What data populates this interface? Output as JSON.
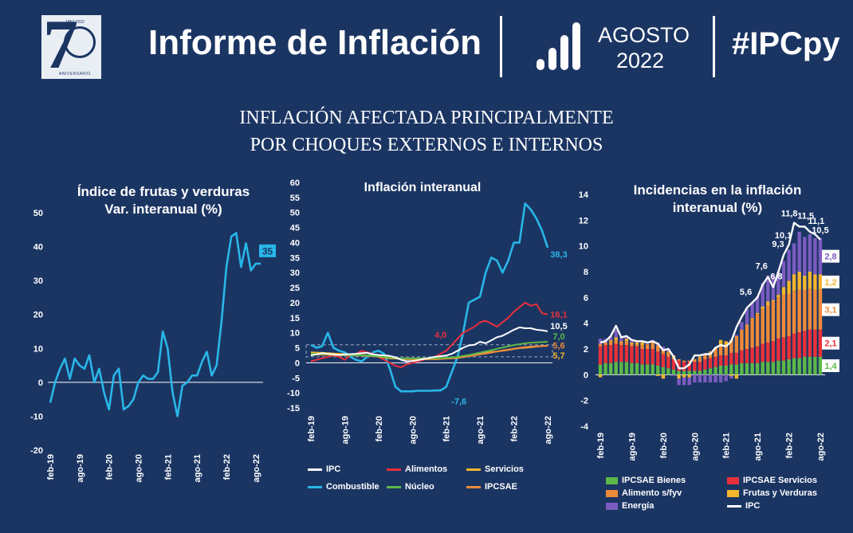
{
  "header": {
    "title": "Informe de Inflación",
    "month": "AGOSTO",
    "year": "2022",
    "hashtag": "#IPCpy",
    "logo": {
      "big": "7",
      "years": "1952-2022",
      "subtitle": "ANIVERSARIO"
    }
  },
  "headline": {
    "line1": "INFLACIÓN AFECTADA PRINCIPALMENTE",
    "line2": "POR CHOQUES EXTERNOS E INTERNOS"
  },
  "colors": {
    "bg": "#1b3563",
    "cyan": "#29b6e8",
    "red": "#e8303a",
    "yellow": "#f5b52e",
    "green": "#5cb848",
    "orange": "#ee8a3a",
    "purple": "#7b5cc0",
    "white": "#ffffff"
  },
  "chart_data": [
    {
      "type": "line",
      "title": "Índice de frutas y verduras",
      "subtitle": "Var. interanual (%)",
      "ylim": [
        -20,
        50
      ],
      "yticks": [
        "-20",
        "-10",
        "0",
        "10",
        "20",
        "30",
        "40",
        "50"
      ],
      "xticks": [
        "feb-19",
        "ago-19",
        "feb-20",
        "ago-20",
        "feb-21",
        "ago-21",
        "feb-22",
        "ago-22"
      ],
      "series": [
        {
          "name": "Frutas y verduras",
          "color": "#29b6e8",
          "values": [
            -6,
            0,
            4,
            7,
            1,
            7,
            5,
            4,
            8,
            0,
            4,
            -3,
            -8,
            2,
            4,
            -8,
            -7,
            -5,
            0,
            2,
            1,
            1,
            3,
            15,
            10,
            -3,
            -10,
            -1,
            0,
            2,
            2,
            6,
            9,
            2,
            5,
            18,
            34,
            43,
            44,
            34,
            41,
            33,
            35,
            35
          ]
        }
      ],
      "last_label": "35"
    },
    {
      "type": "line",
      "title": "Inflación interanual",
      "ylim": [
        -15,
        60
      ],
      "yticks": [
        "-15",
        "-10",
        "-5",
        "0",
        "5",
        "10",
        "15",
        "20",
        "25",
        "30",
        "35",
        "40",
        "45",
        "50",
        "55",
        "60"
      ],
      "xticks": [
        "feb-19",
        "ago-19",
        "feb-20",
        "ago-20",
        "feb-21",
        "ago-21",
        "feb-22",
        "ago-22"
      ],
      "band": [
        2,
        6
      ],
      "series": [
        {
          "name": "IPC",
          "color": "#ffffff",
          "values": [
            2.5,
            2.8,
            3.2,
            3.0,
            2.8,
            2.6,
            2.8,
            2.9,
            3.0,
            3.2,
            3.3,
            2.8,
            2.6,
            2.5,
            2.3,
            1.8,
            1.0,
            0.5,
            0.6,
            0.9,
            1.3,
            1.6,
            2.0,
            2.2,
            2.4,
            3.0,
            4.0,
            5.0,
            5.8,
            6.0,
            7.0,
            6.5,
            7.5,
            8.5,
            9.0,
            10.0,
            11.0,
            11.8,
            11.5,
            11.5,
            11.0,
            10.8,
            10.5
          ]
        },
        {
          "name": "Alimentos",
          "color": "#e8303a",
          "values": [
            0.5,
            1.0,
            1.5,
            2.0,
            2.5,
            2.0,
            1.0,
            2.5,
            3.0,
            4.0,
            3.5,
            3.0,
            2.0,
            1.0,
            0.0,
            -1.0,
            -1.5,
            -0.5,
            0.0,
            0.5,
            1.0,
            1.5,
            2.0,
            3.0,
            4.0,
            6.0,
            8.0,
            10.0,
            11.0,
            12.0,
            13.5,
            14.0,
            13.0,
            12.0,
            13.5,
            15.0,
            17.0,
            18.5,
            20.0,
            19.0,
            19.5,
            16.5,
            16.1
          ]
        },
        {
          "name": "Servicios",
          "color": "#f5b52e",
          "values": [
            3.5,
            3.4,
            3.3,
            3.2,
            3.1,
            3.0,
            2.9,
            2.8,
            2.7,
            2.6,
            2.5,
            2.3,
            2.0,
            1.8,
            1.5,
            1.4,
            1.3,
            1.2,
            1.2,
            1.2,
            1.2,
            1.2,
            1.2,
            1.3,
            1.4,
            1.5,
            1.6,
            2.0,
            2.4,
            2.8,
            3.0,
            3.3,
            3.6,
            3.8,
            4.0,
            4.3,
            4.6,
            4.9,
            5.0,
            5.2,
            5.4,
            5.6,
            5.7
          ]
        },
        {
          "name": "Combustible",
          "color": "#29b6e8",
          "values": [
            6.0,
            5.0,
            5.5,
            10.0,
            5.0,
            4.0,
            3.5,
            2.0,
            1.0,
            0.5,
            2.0,
            3.5,
            4.0,
            3.0,
            -2.0,
            -8.0,
            -9.5,
            -9.5,
            -9.5,
            -9.3,
            -9.3,
            -9.3,
            -9.2,
            -9.2,
            -8.0,
            -3.0,
            2.0,
            10.0,
            20.0,
            21.0,
            22.0,
            30.0,
            35.0,
            34.0,
            30.0,
            34.0,
            40.0,
            40.0,
            53.0,
            51.0,
            48.0,
            44.0,
            38.3
          ]
        },
        {
          "name": "Núcleo",
          "color": "#5cb848",
          "values": [
            3.0,
            3.0,
            2.9,
            2.8,
            2.8,
            2.7,
            2.6,
            2.6,
            2.5,
            2.5,
            2.4,
            2.3,
            2.2,
            2.0,
            1.8,
            1.6,
            1.5,
            1.5,
            1.5,
            1.5,
            1.5,
            1.5,
            1.6,
            1.6,
            1.7,
            1.8,
            2.0,
            2.3,
            2.6,
            3.0,
            3.4,
            3.8,
            4.2,
            4.7,
            5.1,
            5.5,
            5.9,
            6.2,
            6.5,
            6.7,
            6.8,
            6.9,
            7.0
          ]
        },
        {
          "name": "IPCSAE",
          "color": "#ee8a3a",
          "values": [
            2.8,
            2.8,
            2.7,
            2.7,
            2.6,
            2.6,
            2.5,
            2.5,
            2.4,
            2.4,
            2.3,
            2.2,
            2.1,
            2.0,
            1.8,
            1.6,
            1.4,
            1.3,
            1.3,
            1.3,
            1.3,
            1.3,
            1.4,
            1.4,
            1.5,
            1.6,
            1.7,
            1.9,
            2.2,
            2.5,
            2.8,
            3.1,
            3.4,
            3.8,
            4.1,
            4.4,
            4.7,
            5.0,
            5.2,
            5.4,
            5.5,
            5.6,
            5.6
          ]
        }
      ],
      "annotations": [
        {
          "text": "4,0",
          "series": "Alimentos",
          "color": "#e8303a"
        },
        {
          "text": "-7,6",
          "series": "Combustible",
          "color": "#29b6e8"
        },
        {
          "text": "38,3",
          "series": "Combustible",
          "color": "#29b6e8"
        },
        {
          "text": "16,1",
          "series": "Alimentos",
          "color": "#e8303a"
        },
        {
          "text": "10,5",
          "series": "IPC",
          "color": "#ffffff"
        },
        {
          "text": "7,0",
          "series": "Núcleo",
          "color": "#5cb848"
        },
        {
          "text": "5,6",
          "series": "IPCSAE",
          "color": "#ee8a3a"
        },
        {
          "text": "5,7",
          "series": "Servicios",
          "color": "#f5b52e"
        }
      ],
      "legend": [
        "IPC",
        "Alimentos",
        "Servicios",
        "Combustible",
        "Núcleo",
        "IPCSAE"
      ]
    },
    {
      "type": "bar",
      "stacked": true,
      "title": "Incidencias en la inflación",
      "subtitle": "interanual (%)",
      "ylim": [
        -4,
        14
      ],
      "yticks": [
        "-4",
        "-2",
        "0",
        "2",
        "4",
        "6",
        "8",
        "10",
        "12",
        "14"
      ],
      "xticks": [
        "feb-19",
        "ago-19",
        "feb-20",
        "ago-20",
        "feb-21",
        "ago-21",
        "feb-22",
        "ago-22"
      ],
      "series": [
        {
          "name": "IPCSAE Bienes",
          "color": "#5cb848",
          "values": [
            0.8,
            0.9,
            0.9,
            1.0,
            1.0,
            1.0,
            0.9,
            0.9,
            0.8,
            0.8,
            0.8,
            0.7,
            0.6,
            0.5,
            0.4,
            0.3,
            0.3,
            0.3,
            0.3,
            0.3,
            0.4,
            0.5,
            0.6,
            0.7,
            0.7,
            0.8,
            0.8,
            0.9,
            0.9,
            0.9,
            0.9,
            1.0,
            1.0,
            1.0,
            1.1,
            1.1,
            1.2,
            1.3,
            1.3,
            1.4,
            1.4,
            1.4,
            1.4
          ]
        },
        {
          "name": "IPCSAE Servicios",
          "color": "#e8303a",
          "values": [
            1.4,
            1.4,
            1.4,
            1.4,
            1.3,
            1.3,
            1.3,
            1.3,
            1.2,
            1.2,
            1.2,
            1.1,
            1.0,
            0.9,
            0.8,
            0.8,
            0.7,
            0.7,
            0.7,
            0.7,
            0.8,
            0.8,
            0.8,
            0.8,
            0.8,
            0.9,
            0.9,
            1.0,
            1.1,
            1.2,
            1.3,
            1.4,
            1.5,
            1.6,
            1.7,
            1.8,
            1.8,
            1.9,
            2.0,
            2.0,
            2.1,
            2.1,
            2.1
          ]
        },
        {
          "name": "Alimento s/fyv",
          "color": "#ee8a3a",
          "values": [
            0.2,
            0.2,
            0.3,
            0.3,
            0.3,
            0.3,
            0.2,
            0.2,
            0.3,
            0.4,
            0.5,
            0.5,
            0.4,
            0.3,
            0.2,
            0.1,
            0.1,
            0.1,
            0.2,
            0.3,
            0.4,
            0.5,
            0.6,
            0.7,
            0.8,
            1.0,
            1.3,
            1.6,
            1.9,
            2.2,
            2.5,
            2.7,
            2.9,
            3.1,
            3.2,
            3.3,
            3.3,
            3.3,
            3.3,
            3.2,
            3.2,
            3.1,
            3.1
          ]
        },
        {
          "name": "Frutas y Verduras",
          "color": "#f5b52e",
          "values": [
            -0.2,
            0.0,
            0.1,
            0.2,
            0.0,
            0.2,
            0.1,
            0.1,
            0.2,
            0.0,
            0.1,
            -0.1,
            -0.3,
            0.1,
            0.1,
            -0.3,
            -0.2,
            -0.2,
            0.0,
            0.1,
            0.0,
            0.0,
            0.1,
            0.5,
            0.3,
            -0.1,
            -0.3,
            0.0,
            0.0,
            0.1,
            0.1,
            0.2,
            0.3,
            0.1,
            0.2,
            0.6,
            1.0,
            1.3,
            1.4,
            1.1,
            1.3,
            1.2,
            1.2
          ]
        },
        {
          "name": "Energía",
          "color": "#7b5cc0",
          "values": [
            0.4,
            0.3,
            0.3,
            0.6,
            0.3,
            0.2,
            0.2,
            0.1,
            0.1,
            0.0,
            0.1,
            0.2,
            0.2,
            0.2,
            -0.1,
            -0.5,
            -0.6,
            -0.6,
            -0.6,
            -0.6,
            -0.6,
            -0.6,
            -0.6,
            -0.6,
            -0.5,
            -0.2,
            0.1,
            0.6,
            1.2,
            1.2,
            1.3,
            1.8,
            2.0,
            2.0,
            1.8,
            2.0,
            2.4,
            2.4,
            3.1,
            3.0,
            2.9,
            2.8,
            2.8
          ]
        }
      ],
      "line": {
        "name": "IPC",
        "color": "#ffffff",
        "values": [
          2.5,
          2.6,
          3.0,
          3.8,
          2.9,
          3.0,
          2.7,
          2.6,
          2.6,
          2.5,
          2.6,
          2.4,
          1.9,
          2.0,
          1.4,
          0.5,
          0.5,
          0.8,
          1.5,
          1.5,
          1.6,
          1.6,
          2.1,
          2.3,
          2.2,
          2.6,
          3.7,
          4.5,
          5.2,
          5.6,
          6.0,
          7.0,
          7.6,
          6.8,
          8.0,
          9.3,
          10.1,
          11.8,
          11.5,
          11.5,
          11.1,
          10.9,
          10.5
        ]
      },
      "point_labels": [
        "5,6",
        "7,6",
        "6,8",
        "9,3",
        "10,1",
        "11,8",
        "11,5",
        "11,1",
        "10,5"
      ],
      "end_badges": [
        {
          "text": "2,8",
          "color": "#7b5cc0"
        },
        {
          "text": "1,2",
          "color": "#f5b52e"
        },
        {
          "text": "3,1",
          "color": "#ee8a3a"
        },
        {
          "text": "2,1",
          "color": "#e8303a"
        },
        {
          "text": "1,4",
          "color": "#5cb848"
        }
      ],
      "legend": [
        "IPCSAE Bienes",
        "IPCSAE Servicios",
        "Alimento s/fyv",
        "Frutas y Verduras",
        "Energía",
        "IPC"
      ]
    }
  ]
}
